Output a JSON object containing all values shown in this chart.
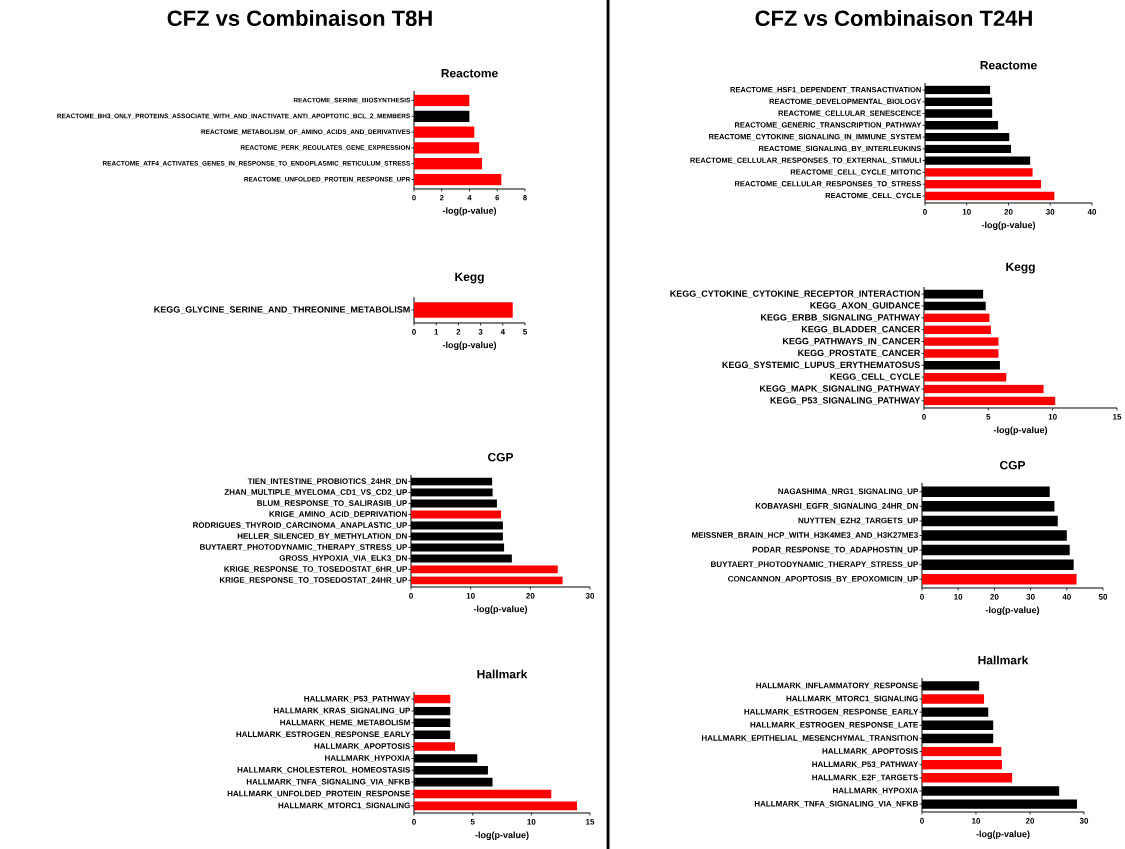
{
  "chart_data": [
    {
      "type": "bar",
      "orientation": "horizontal",
      "title": "CFZ vs Combinaison T8H",
      "subtitle": "Reactome",
      "xlabel": "-log(p-value)",
      "categories": [
        "REACTOME_SERINE_BIOSYNTHESIS",
        "REACTOME_BH3_ONLY_PROTEINS_ASSOCIATE_WITH_AND_INACTIVATE_ANTI_APOPTOTIC_BCL_2_MEMBERS",
        "REACTOME_METABOLISM_OF_AMINO_ACIDS_AND_DERIVATIVES",
        "REACTOME_PERK_REGULATES_GENE_EXPRESSION",
        "REACTOME_ATF4_ACTIVATES_GENES_IN_RESPONSE_TO_ENDOPLASMIC_RETICULUM_STRESS",
        "REACTOME_UNFOLDED_PROTEIN_RESPONSE_UPR"
      ],
      "values": [
        4.0,
        4.0,
        4.35,
        4.7,
        4.9,
        6.3
      ],
      "colors": [
        "#ff0000",
        "#000000",
        "#ff0000",
        "#ff0000",
        "#ff0000",
        "#ff0000"
      ],
      "xlim": [
        0,
        8
      ],
      "xticks": [
        0,
        2,
        4,
        6,
        8
      ]
    },
    {
      "type": "bar",
      "orientation": "horizontal",
      "title": "Kegg",
      "xlabel": "-log(p-value)",
      "categories": [
        "KEGG_GLYCINE_SERINE_AND_THREONINE_METABOLISM"
      ],
      "values": [
        4.45
      ],
      "colors": [
        "#ff0000"
      ],
      "xlim": [
        0,
        5
      ],
      "xticks": [
        0,
        1,
        2,
        3,
        4,
        5
      ]
    },
    {
      "type": "bar",
      "orientation": "horizontal",
      "title": "CGP",
      "xlabel": "-log(p-value)",
      "categories": [
        "TIEN_INTESTINE_PROBIOTICS_24HR_DN",
        "ZHAN_MULTIPLE_MYELOMA_CD1_VS_CD2_UP",
        "BLUM_RESPONSE_TO_SALIRASIB_UP",
        "KRIGE_AMINO_ACID_DEPRIVATION",
        "RODRIGUES_THYROID_CARCINOMA_ANAPLASTIC_UP",
        "HELLER_SILENCED_BY_METHYLATION_DN",
        "BUYTAERT_PHOTODYNAMIC_THERAPY_STRESS_UP",
        "GROSS_HYPOXIA_VIA_ELK3_DN",
        "KRIGE_RESPONSE_TO_TOSEDOSTAT_6HR_UP",
        "KRIGE_RESPONSE_TO_TOSEDOSTAT_24HR_UP"
      ],
      "values": [
        13.6,
        13.7,
        14.4,
        15.1,
        15.4,
        15.4,
        15.6,
        16.9,
        24.6,
        25.4
      ],
      "colors": [
        "#000000",
        "#000000",
        "#000000",
        "#ff0000",
        "#000000",
        "#000000",
        "#000000",
        "#000000",
        "#ff0000",
        "#ff0000"
      ],
      "xlim": [
        0,
        30
      ],
      "xticks": [
        0,
        10,
        20,
        30
      ]
    },
    {
      "type": "bar",
      "orientation": "horizontal",
      "title": "Hallmark",
      "xlabel": "-log(p-value)",
      "categories": [
        "HALLMARK_P53_PATHWAY",
        "HALLMARK_KRAS_SIGNALING_UP",
        "HALLMARK_HEME_METABOLISM",
        "HALLMARK_ESTROGEN_RESPONSE_EARLY",
        "HALLMARK_APOPTOSIS",
        "HALLMARK_HYPOXIA",
        "HALLMARK_CHOLESTEROL_HOMEOSTASIS",
        "HALLMARK_TNFA_SIGNALING_VIA_NFKB",
        "HALLMARK_UNFOLDED_PROTEIN_RESPONSE",
        "HALLMARK_MTORC1_SIGNALING"
      ],
      "values": [
        3.1,
        3.1,
        3.1,
        3.1,
        3.5,
        5.4,
        6.3,
        6.7,
        11.7,
        13.9
      ],
      "colors": [
        "#ff0000",
        "#000000",
        "#000000",
        "#000000",
        "#ff0000",
        "#000000",
        "#000000",
        "#000000",
        "#ff0000",
        "#ff0000"
      ],
      "xlim": [
        0,
        15
      ],
      "xticks": [
        0,
        5,
        10,
        15
      ]
    },
    {
      "type": "bar",
      "orientation": "horizontal",
      "title": "CFZ vs Combinaison T24H",
      "subtitle": "Reactome",
      "xlabel": "-log(p-value)",
      "categories": [
        "REACTOME_HSF1_DEPENDENT_TRANSACTIVATION",
        "REACTOME_DEVELOPMENTAL_BIOLOGY",
        "REACTOME_CELLULAR_SENESCENCE",
        "REACTOME_GENERIC_TRANSCRIPTION_PATHWAY",
        "REACTOME_CYTOKINE_SIGNALING_IN_IMMUNE_SYSTEM",
        "REACTOME_SIGNALING_BY_INTERLEUKINS",
        "REACTOME_CELLULAR_RESPONSES_TO_EXTERNAL_STIMULI",
        "REACTOME_CELL_CYCLE_MITOTIC",
        "REACTOME_CELLULAR_RESPONSES_TO_STRESS",
        "REACTOME_CELL_CYCLE"
      ],
      "values": [
        15.6,
        16.1,
        16.1,
        17.5,
        20.2,
        20.6,
        25.2,
        25.8,
        27.8,
        31.0
      ],
      "colors": [
        "#000000",
        "#000000",
        "#000000",
        "#000000",
        "#000000",
        "#000000",
        "#000000",
        "#ff0000",
        "#ff0000",
        "#ff0000"
      ],
      "xlim": [
        0,
        40
      ],
      "xticks": [
        0,
        10,
        20,
        30,
        40
      ]
    },
    {
      "type": "bar",
      "orientation": "horizontal",
      "title": "Kegg",
      "xlabel": "-log(p-value)",
      "categories": [
        "KEGG_CYTOKINE_CYTOKINE_RECEPTOR_INTERACTION",
        "KEGG_AXON_GUIDANCE",
        "KEGG_ERBB_SIGNALING_PATHWAY",
        "KEGG_BLADDER_CANCER",
        "KEGG_PATHWAYS_IN_CANCER",
        "KEGG_PROSTATE_CANCER",
        "KEGG_SYSTEMIC_LUPUS_ERYTHEMATOSUS",
        "KEGG_CELL_CYCLE",
        "KEGG_MAPK_SIGNALING_PATHWAY",
        "KEGG_P53_SIGNALING_PATHWAY"
      ],
      "values": [
        4.6,
        4.8,
        5.1,
        5.2,
        5.8,
        5.8,
        5.9,
        6.4,
        9.3,
        10.2
      ],
      "colors": [
        "#000000",
        "#000000",
        "#ff0000",
        "#ff0000",
        "#ff0000",
        "#ff0000",
        "#000000",
        "#ff0000",
        "#ff0000",
        "#ff0000"
      ],
      "xlim": [
        0,
        15
      ],
      "xticks": [
        0,
        5,
        10,
        15
      ]
    },
    {
      "type": "bar",
      "orientation": "horizontal",
      "title": "CGP",
      "xlabel": "-log(p-value)",
      "categories": [
        "NAGASHIMA_NRG1_SIGNALING_UP",
        "KOBAYASHI_EGFR_SIGNALING_24HR_DN",
        "NUYTTEN_EZH2_TARGETS_UP",
        "MEISSNER_BRAIN_HCP_WITH_H3K4ME3_AND_H3K27ME3",
        "PODAR_RESPONSE_TO_ADAPHOSTIN_UP",
        "BUYTAERT_PHOTODYNAMIC_THERAPY_STRESS_UP",
        "CONCANNON_APOPTOSIS_BY_EPOXOMICIN_UP"
      ],
      "values": [
        35.3,
        36.6,
        37.5,
        40.0,
        40.8,
        41.9,
        42.7
      ],
      "colors": [
        "#000000",
        "#000000",
        "#000000",
        "#000000",
        "#000000",
        "#000000",
        "#ff0000"
      ],
      "xlim": [
        0,
        50
      ],
      "xticks": [
        0,
        10,
        20,
        30,
        40,
        50
      ]
    },
    {
      "type": "bar",
      "orientation": "horizontal",
      "title": "Hallmark",
      "xlabel": "-log(p-value)",
      "categories": [
        "HALLMARK_INFLAMMATORY_RESPONSE",
        "HALLMARK_MTORC1_SIGNALING",
        "HALLMARK_ESTROGEN_RESPONSE_EARLY",
        "HALLMARK_ESTROGEN_RESPONSE_LATE",
        "HALLMARK_EPITHELIAL_MESENCHYMAL_TRANSITION",
        "HALLMARK_APOPTOSIS",
        "HALLMARK_P53_PATHWAY",
        "HALLMARK_E2F_TARGETS",
        "HALLMARK_HYPOXIA",
        "HALLMARK_TNFA_SIGNALING_VIA_NFKB"
      ],
      "values": [
        10.6,
        11.5,
        12.3,
        13.2,
        13.2,
        14.7,
        14.8,
        16.7,
        25.4,
        28.7
      ],
      "colors": [
        "#000000",
        "#ff0000",
        "#000000",
        "#000000",
        "#000000",
        "#ff0000",
        "#ff0000",
        "#ff0000",
        "#000000",
        "#000000"
      ],
      "xlim": [
        0,
        30
      ],
      "xticks": [
        0,
        10,
        20,
        30
      ]
    }
  ]
}
